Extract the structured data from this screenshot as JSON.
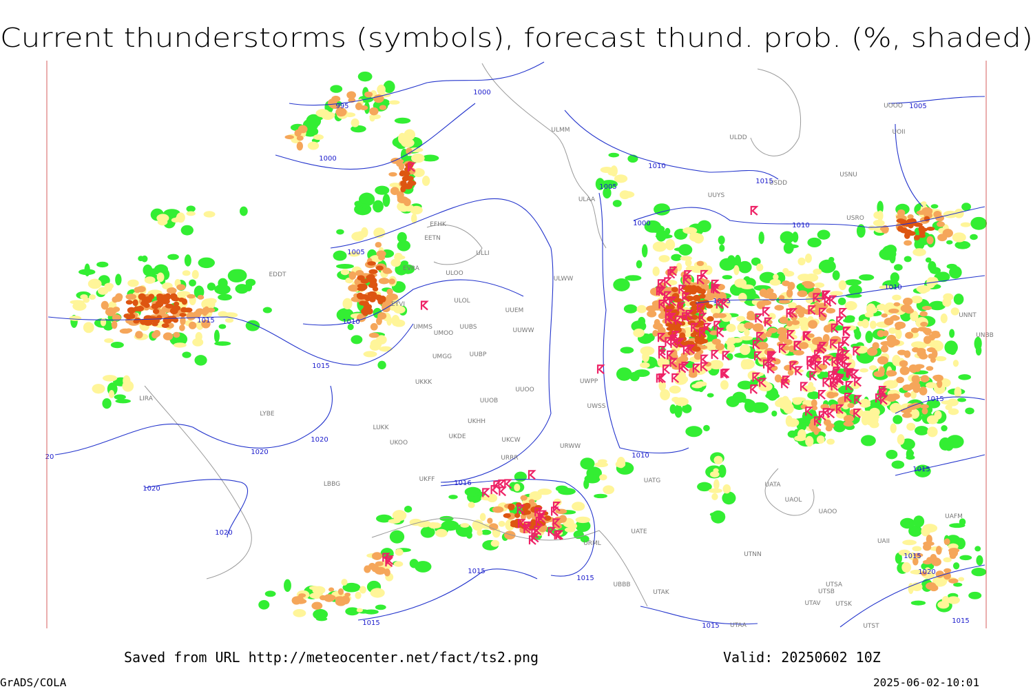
{
  "title": "Current thunderstorms (symbols), forecast thund. prob. (%, shaded)",
  "footer": {
    "source": "Saved from URL http://meteocenter.net/fact/ts2.png",
    "valid": "Valid: 20250602 10Z",
    "software": "GrADS/COLA",
    "timestamp": "2025-06-02-10:01"
  },
  "isobar_labels": [
    "995",
    "1000",
    "1000",
    "1005",
    "1010",
    "1015",
    "1015",
    "1020",
    "1020",
    "1020",
    "1020",
    "1016",
    "1015",
    "1015",
    "1015",
    "1010",
    "1005",
    "1000",
    "1010",
    "1010",
    "1005",
    "1015",
    "1015",
    "1015",
    "1020",
    "1015",
    "1005",
    "1015",
    "1010",
    "1015",
    "20"
  ],
  "stations": [
    "ULMM",
    "ULDD",
    "USNU",
    "USDD",
    "ULAA",
    "UUYS",
    "USRO",
    "EFHK",
    "EETN",
    "ULLI",
    "EVRA",
    "ULOO",
    "EDDT",
    "ULWW",
    "EYVI",
    "ULOL",
    "UUEM",
    "UMMS",
    "UMOO",
    "UUBS",
    "UUWW",
    "UMGG",
    "UUBP",
    "UKKK",
    "UWPP",
    "UUOB",
    "UUOO",
    "UWSS",
    "LUKK",
    "UKFF",
    "URRR",
    "UKOO",
    "UKHH",
    "UKDE",
    "UKCW",
    "URWW",
    "UATG",
    "UATA",
    "UAOL",
    "UAOO",
    "UATE",
    "URML",
    "UTNN",
    "UBBB",
    "UTAK",
    "UTSA",
    "UTSB",
    "UTAV",
    "UTSK",
    "UTST",
    "UTAA",
    "LBBG",
    "LYBE",
    "LIRA",
    "UNNT",
    "UNBB",
    "UOOO",
    "UOII",
    "UAFM",
    "UAII"
  ]
}
